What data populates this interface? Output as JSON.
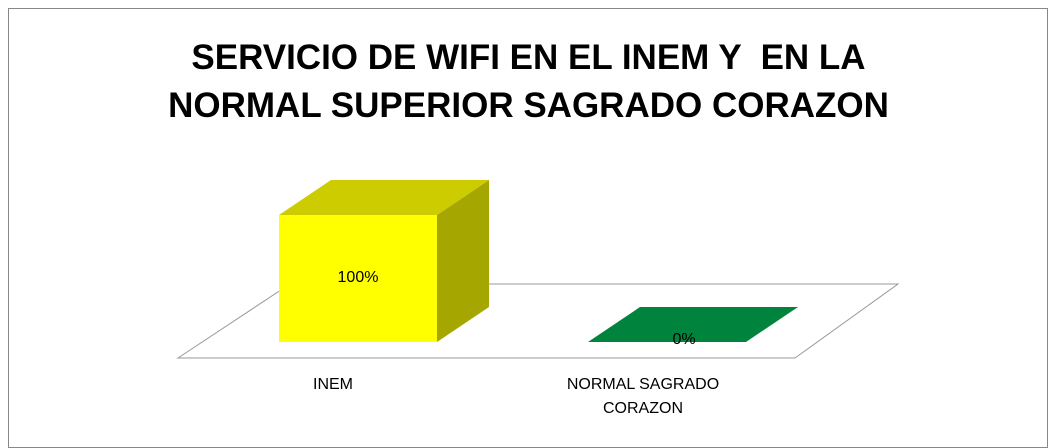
{
  "chart_data": {
    "type": "bar3d",
    "title": [
      "SERVICIO DE WIFI EN EL INEM Y  EN LA",
      "NORMAL SUPERIOR SAGRADO CORAZON"
    ],
    "categories": [
      "INEM",
      "NORMAL SAGRADO CORAZON"
    ],
    "values": [
      100,
      0
    ],
    "value_labels": [
      "100%",
      "0%"
    ],
    "colors": [
      "#ffff00",
      "#00843d"
    ]
  }
}
